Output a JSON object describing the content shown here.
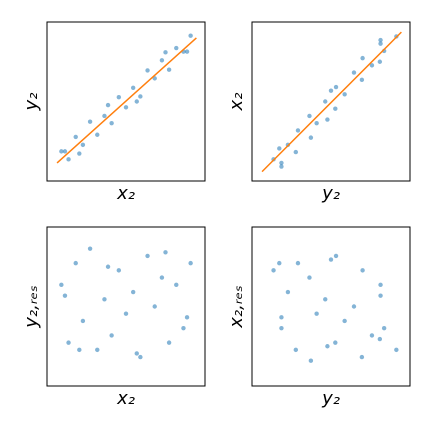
{
  "chart_data": [
    {
      "type": "scatter",
      "xlabel": "x₂",
      "ylabel": "y₂",
      "xlim": [
        -1.1,
        1.1
      ],
      "ylim": [
        -1.1,
        1.1
      ],
      "color": "#1f77b4",
      "x": [
        -0.9,
        -0.8,
        -0.7,
        -0.6,
        -0.5,
        -0.4,
        -0.3,
        -0.2,
        -0.1,
        0,
        0.1,
        0.2,
        0.3,
        0.4,
        0.5,
        0.6,
        0.7,
        0.8,
        0.9,
        -0.65,
        -0.25,
        0.15,
        0.55,
        0.85,
        -0.85
      ],
      "values": [
        -0.69,
        -0.8,
        -0.49,
        -0.6,
        -0.28,
        -0.46,
        -0.2,
        -0.3,
        0.06,
        -0.08,
        0.19,
        0.07,
        0.43,
        0.32,
        0.57,
        0.44,
        0.74,
        0.69,
        0.91,
        -0.72,
        -0.05,
        0,
        0.68,
        0.69,
        -0.69
      ],
      "fit": {
        "x": [
          -0.96,
          0.98
        ],
        "values": [
          -0.85,
          0.88
        ],
        "color": "#ff7f0e"
      }
    },
    {
      "type": "scatter",
      "xlabel": "y₂",
      "ylabel": "x₂",
      "xlim": [
        -1.1,
        1.1
      ],
      "ylim": [
        -1.1,
        1.1
      ],
      "color": "#1f77b4",
      "x": [
        -0.69,
        -0.8,
        -0.49,
        -0.6,
        -0.28,
        -0.46,
        -0.2,
        -0.3,
        0.06,
        -0.08,
        0.19,
        0.07,
        0.43,
        0.32,
        0.57,
        0.44,
        0.74,
        0.69,
        0.91,
        -0.72,
        -0.05,
        0,
        0.68,
        0.69,
        -0.69
      ],
      "values": [
        -0.9,
        -0.8,
        -0.7,
        -0.6,
        -0.5,
        -0.4,
        -0.3,
        -0.2,
        -0.1,
        0,
        0.1,
        0.2,
        0.3,
        0.4,
        0.5,
        0.6,
        0.7,
        0.8,
        0.9,
        -0.65,
        -0.25,
        0.15,
        0.55,
        0.85,
        -0.85
      ],
      "fit": {
        "x": [
          -0.96,
          0.98
        ],
        "values": [
          -0.97,
          0.96
        ],
        "color": "#ff7f0e"
      }
    },
    {
      "type": "scatter",
      "xlabel": "x₂",
      "ylabel": "y₂,ᵣₑₛ",
      "xlim": [
        -1.1,
        1.1
      ],
      "ylim": [
        -1.1,
        1.1
      ],
      "color": "#1f77b4",
      "x": [
        -0.9,
        -0.8,
        -0.7,
        -0.6,
        -0.5,
        -0.4,
        -0.3,
        -0.2,
        -0.1,
        0,
        0.1,
        0.2,
        0.3,
        0.4,
        0.5,
        0.6,
        0.7,
        0.8,
        0.9,
        -0.65,
        -0.25,
        0.15,
        0.55,
        0.85,
        -0.85
      ],
      "values": [
        0.3,
        -0.5,
        0.6,
        -0.2,
        0.8,
        -0.6,
        0.1,
        -0.4,
        0.5,
        -0.1,
        0.2,
        -0.7,
        0.7,
        0,
        0.4,
        -0.5,
        0.3,
        -0.3,
        0.6,
        -0.6,
        0.55,
        -0.65,
        0.75,
        -0.15,
        0.15
      ]
    },
    {
      "type": "scatter",
      "xlabel": "y₂",
      "ylabel": "x₂,ᵣₑₛ",
      "xlim": [
        -1.1,
        1.1
      ],
      "ylim": [
        -1.1,
        1.1
      ],
      "color": "#1f77b4",
      "x": [
        -0.69,
        -0.8,
        -0.49,
        -0.6,
        -0.28,
        -0.46,
        -0.2,
        -0.3,
        0.06,
        -0.08,
        0.19,
        0.07,
        0.43,
        0.32,
        0.57,
        0.44,
        0.74,
        0.69,
        0.91,
        -0.72,
        -0.05,
        0,
        0.68,
        0.69,
        -0.69
      ],
      "values": [
        -0.3,
        0.5,
        -0.6,
        0.2,
        -0.75,
        0.6,
        -0.1,
        0.4,
        -0.5,
        0.1,
        -0.2,
        0.7,
        -0.7,
        0,
        -0.4,
        0.5,
        -0.3,
        0.3,
        -0.6,
        0.6,
        -0.55,
        0.65,
        -0.45,
        0.15,
        -0.15
      ]
    }
  ]
}
